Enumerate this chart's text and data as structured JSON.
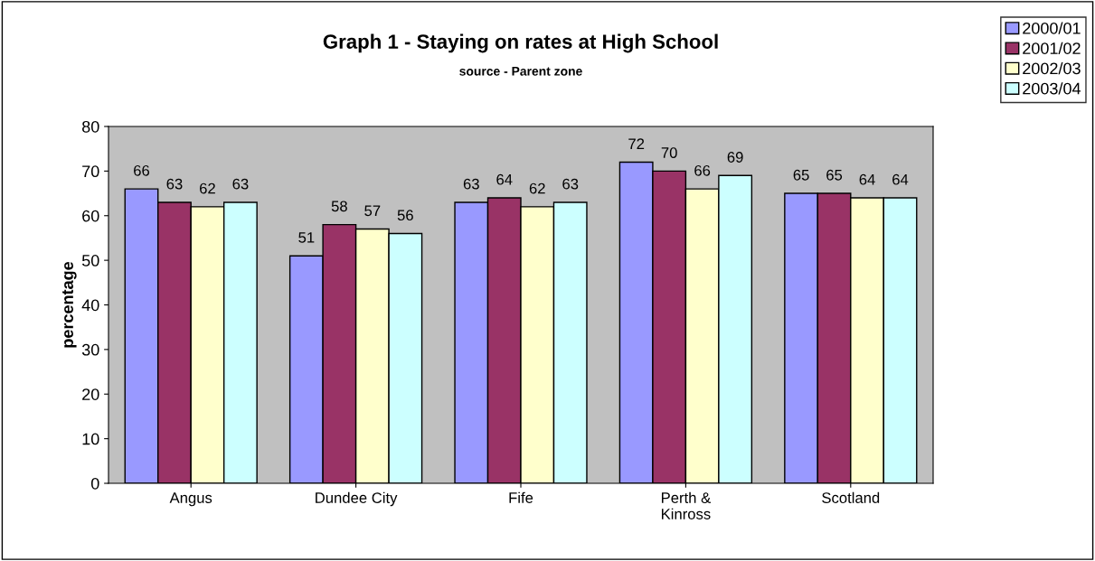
{
  "chart_data": {
    "type": "bar",
    "title": "Graph 1 - Staying on rates at High School",
    "subtitle": "source - Parent zone",
    "ylabel": "percentage",
    "categories": [
      "Angus",
      "Dundee City",
      "Fife",
      "Perth &\nKinross",
      "Scotland"
    ],
    "series": [
      {
        "name": "2000/01",
        "color": "#9999ff",
        "values": [
          66,
          51,
          63,
          72,
          65
        ]
      },
      {
        "name": "2001/02",
        "color": "#993366",
        "values": [
          63,
          58,
          64,
          70,
          65
        ]
      },
      {
        "name": "2002/03",
        "color": "#ffffcc",
        "values": [
          62,
          57,
          62,
          66,
          64
        ]
      },
      {
        "name": "2003/04",
        "color": "#ccffff",
        "values": [
          63,
          56,
          63,
          69,
          64
        ]
      }
    ],
    "ylim": [
      0,
      80
    ],
    "yticks": [
      0,
      10,
      20,
      30,
      40,
      50,
      60,
      70,
      80
    ],
    "grid": false,
    "legend": "top right",
    "data_labels": true
  }
}
